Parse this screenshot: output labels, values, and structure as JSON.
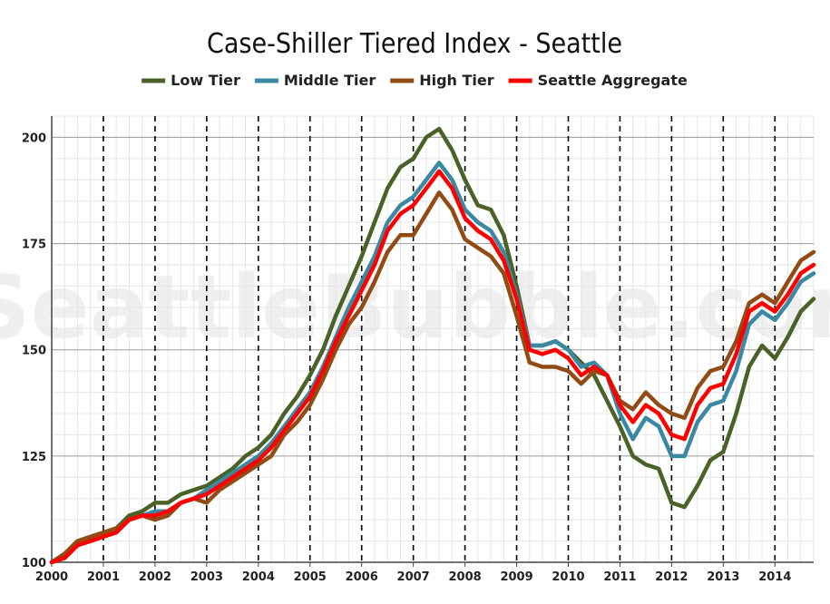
{
  "watermark": "SeattleBubble.com",
  "chart_data": {
    "type": "line",
    "title": "Case-Shiller Tiered Index - Seattle",
    "xlabel": "",
    "ylabel": "",
    "xlim": [
      2000,
      2014.75
    ],
    "ylim": [
      100,
      205
    ],
    "xticks": [
      2000,
      2001,
      2002,
      2003,
      2004,
      2005,
      2006,
      2007,
      2008,
      2009,
      2010,
      2011,
      2012,
      2013,
      2014
    ],
    "yticks": [
      100,
      125,
      150,
      175,
      200
    ],
    "vlines": [
      2001,
      2002,
      2003,
      2004,
      2005,
      2006,
      2007,
      2008,
      2009,
      2010,
      2011,
      2012,
      2013,
      2014
    ],
    "grid": true,
    "legend": "top-center",
    "series": [
      {
        "name": "Low Tier",
        "color": "#4a6128",
        "points": [
          [
            2000,
            100
          ],
          [
            2000.25,
            102
          ],
          [
            2000.5,
            105
          ],
          [
            2000.75,
            106
          ],
          [
            2001,
            107
          ],
          [
            2001.25,
            108
          ],
          [
            2001.5,
            111
          ],
          [
            2001.75,
            112
          ],
          [
            2002,
            114
          ],
          [
            2002.25,
            114
          ],
          [
            2002.5,
            116
          ],
          [
            2002.75,
            117
          ],
          [
            2003,
            118
          ],
          [
            2003.25,
            120
          ],
          [
            2003.5,
            122
          ],
          [
            2003.75,
            125
          ],
          [
            2004,
            127
          ],
          [
            2004.25,
            130
          ],
          [
            2004.5,
            135
          ],
          [
            2004.75,
            139
          ],
          [
            2005,
            144
          ],
          [
            2005.25,
            150
          ],
          [
            2005.5,
            158
          ],
          [
            2005.75,
            165
          ],
          [
            2006,
            172
          ],
          [
            2006.25,
            180
          ],
          [
            2006.5,
            188
          ],
          [
            2006.75,
            193
          ],
          [
            2007,
            195
          ],
          [
            2007.25,
            200
          ],
          [
            2007.5,
            202
          ],
          [
            2007.75,
            197
          ],
          [
            2008,
            190
          ],
          [
            2008.25,
            184
          ],
          [
            2008.5,
            183
          ],
          [
            2008.75,
            177
          ],
          [
            2009,
            165
          ],
          [
            2009.25,
            151
          ],
          [
            2009.5,
            151
          ],
          [
            2009.75,
            152
          ],
          [
            2010,
            150
          ],
          [
            2010.25,
            147
          ],
          [
            2010.5,
            144
          ],
          [
            2010.75,
            138
          ],
          [
            2011,
            132
          ],
          [
            2011.25,
            125
          ],
          [
            2011.5,
            123
          ],
          [
            2011.75,
            122
          ],
          [
            2012,
            114
          ],
          [
            2012.25,
            113
          ],
          [
            2012.5,
            118
          ],
          [
            2012.75,
            124
          ],
          [
            2013,
            126
          ],
          [
            2013.25,
            135
          ],
          [
            2013.5,
            146
          ],
          [
            2013.75,
            151
          ],
          [
            2014,
            148
          ],
          [
            2014.25,
            153
          ],
          [
            2014.5,
            159
          ],
          [
            2014.75,
            162
          ]
        ]
      },
      {
        "name": "Middle Tier",
        "color": "#3a88a2",
        "points": [
          [
            2000,
            100
          ],
          [
            2000.25,
            101
          ],
          [
            2000.5,
            104
          ],
          [
            2000.75,
            105
          ],
          [
            2001,
            106
          ],
          [
            2001.25,
            108
          ],
          [
            2001.5,
            110
          ],
          [
            2001.75,
            111
          ],
          [
            2002,
            112
          ],
          [
            2002.25,
            112
          ],
          [
            2002.5,
            114
          ],
          [
            2002.75,
            115
          ],
          [
            2003,
            117
          ],
          [
            2003.25,
            119
          ],
          [
            2003.5,
            121
          ],
          [
            2003.75,
            123
          ],
          [
            2004,
            125
          ],
          [
            2004.25,
            128
          ],
          [
            2004.5,
            132
          ],
          [
            2004.75,
            136
          ],
          [
            2005,
            140
          ],
          [
            2005.25,
            146
          ],
          [
            2005.5,
            153
          ],
          [
            2005.75,
            160
          ],
          [
            2006,
            166
          ],
          [
            2006.25,
            172
          ],
          [
            2006.5,
            180
          ],
          [
            2006.75,
            184
          ],
          [
            2007,
            186
          ],
          [
            2007.25,
            190
          ],
          [
            2007.5,
            194
          ],
          [
            2007.75,
            190
          ],
          [
            2008,
            183
          ],
          [
            2008.25,
            180
          ],
          [
            2008.5,
            178
          ],
          [
            2008.75,
            173
          ],
          [
            2009,
            163
          ],
          [
            2009.25,
            151
          ],
          [
            2009.5,
            151
          ],
          [
            2009.75,
            152
          ],
          [
            2010,
            150
          ],
          [
            2010.25,
            146
          ],
          [
            2010.5,
            147
          ],
          [
            2010.75,
            144
          ],
          [
            2011,
            135
          ],
          [
            2011.25,
            129
          ],
          [
            2011.5,
            134
          ],
          [
            2011.75,
            132
          ],
          [
            2012,
            125
          ],
          [
            2012.25,
            125
          ],
          [
            2012.5,
            133
          ],
          [
            2012.75,
            137
          ],
          [
            2013,
            138
          ],
          [
            2013.25,
            145
          ],
          [
            2013.5,
            156
          ],
          [
            2013.75,
            159
          ],
          [
            2014,
            157
          ],
          [
            2014.25,
            161
          ],
          [
            2014.5,
            166
          ],
          [
            2014.75,
            168
          ]
        ]
      },
      {
        "name": "High Tier",
        "color": "#924b14",
        "points": [
          [
            2000,
            100
          ],
          [
            2000.25,
            102
          ],
          [
            2000.5,
            105
          ],
          [
            2000.75,
            106
          ],
          [
            2001,
            107
          ],
          [
            2001.25,
            108
          ],
          [
            2001.5,
            110
          ],
          [
            2001.75,
            111
          ],
          [
            2002,
            110
          ],
          [
            2002.25,
            111
          ],
          [
            2002.5,
            114
          ],
          [
            2002.75,
            115
          ],
          [
            2003,
            114
          ],
          [
            2003.25,
            117
          ],
          [
            2003.5,
            119
          ],
          [
            2003.75,
            121
          ],
          [
            2004,
            123
          ],
          [
            2004.25,
            125
          ],
          [
            2004.5,
            130
          ],
          [
            2004.75,
            133
          ],
          [
            2005,
            137
          ],
          [
            2005.25,
            143
          ],
          [
            2005.5,
            150
          ],
          [
            2005.75,
            156
          ],
          [
            2006,
            160
          ],
          [
            2006.25,
            166
          ],
          [
            2006.5,
            173
          ],
          [
            2006.75,
            177
          ],
          [
            2007,
            177
          ],
          [
            2007.25,
            182
          ],
          [
            2007.5,
            187
          ],
          [
            2007.75,
            183
          ],
          [
            2008,
            176
          ],
          [
            2008.25,
            174
          ],
          [
            2008.5,
            172
          ],
          [
            2008.75,
            168
          ],
          [
            2009,
            158
          ],
          [
            2009.25,
            147
          ],
          [
            2009.5,
            146
          ],
          [
            2009.75,
            146
          ],
          [
            2010,
            145
          ],
          [
            2010.25,
            142
          ],
          [
            2010.5,
            145
          ],
          [
            2010.75,
            144
          ],
          [
            2011,
            138
          ],
          [
            2011.25,
            136
          ],
          [
            2011.5,
            140
          ],
          [
            2011.75,
            137
          ],
          [
            2012,
            135
          ],
          [
            2012.25,
            134
          ],
          [
            2012.5,
            141
          ],
          [
            2012.75,
            145
          ],
          [
            2013,
            146
          ],
          [
            2013.25,
            152
          ],
          [
            2013.5,
            161
          ],
          [
            2013.75,
            163
          ],
          [
            2014,
            161
          ],
          [
            2014.25,
            166
          ],
          [
            2014.5,
            171
          ],
          [
            2014.75,
            173
          ]
        ]
      },
      {
        "name": "Seattle Aggregate",
        "color": "#ff0000",
        "points": [
          [
            2000,
            100
          ],
          [
            2000.25,
            101
          ],
          [
            2000.5,
            104
          ],
          [
            2000.75,
            105
          ],
          [
            2001,
            106
          ],
          [
            2001.25,
            107
          ],
          [
            2001.5,
            110
          ],
          [
            2001.75,
            111
          ],
          [
            2002,
            111
          ],
          [
            2002.25,
            112
          ],
          [
            2002.5,
            114
          ],
          [
            2002.75,
            115
          ],
          [
            2003,
            116
          ],
          [
            2003.25,
            118
          ],
          [
            2003.5,
            120
          ],
          [
            2003.75,
            122
          ],
          [
            2004,
            124
          ],
          [
            2004.25,
            127
          ],
          [
            2004.5,
            131
          ],
          [
            2004.75,
            135
          ],
          [
            2005,
            139
          ],
          [
            2005.25,
            145
          ],
          [
            2005.5,
            152
          ],
          [
            2005.75,
            158
          ],
          [
            2006,
            164
          ],
          [
            2006.25,
            170
          ],
          [
            2006.5,
            178
          ],
          [
            2006.75,
            182
          ],
          [
            2007,
            184
          ],
          [
            2007.25,
            188
          ],
          [
            2007.5,
            192
          ],
          [
            2007.75,
            188
          ],
          [
            2008,
            181
          ],
          [
            2008.25,
            178
          ],
          [
            2008.5,
            176
          ],
          [
            2008.75,
            171
          ],
          [
            2009,
            162
          ],
          [
            2009.25,
            150
          ],
          [
            2009.5,
            149
          ],
          [
            2009.75,
            150
          ],
          [
            2010,
            148
          ],
          [
            2010.25,
            144
          ],
          [
            2010.5,
            146
          ],
          [
            2010.75,
            144
          ],
          [
            2011,
            137
          ],
          [
            2011.25,
            133
          ],
          [
            2011.5,
            137
          ],
          [
            2011.75,
            135
          ],
          [
            2012,
            130
          ],
          [
            2012.25,
            129
          ],
          [
            2012.5,
            137
          ],
          [
            2012.75,
            141
          ],
          [
            2013,
            142
          ],
          [
            2013.25,
            149
          ],
          [
            2013.5,
            159
          ],
          [
            2013.75,
            161
          ],
          [
            2014,
            159
          ],
          [
            2014.25,
            163
          ],
          [
            2014.5,
            168
          ],
          [
            2014.75,
            170
          ]
        ]
      }
    ]
  }
}
